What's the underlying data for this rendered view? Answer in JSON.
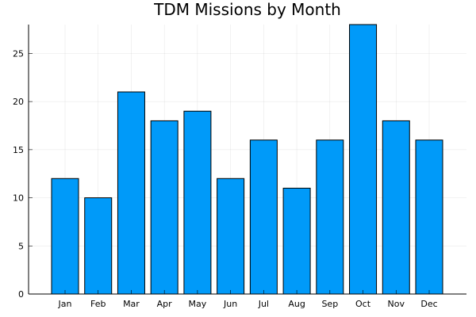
{
  "chart_data": {
    "type": "bar",
    "title": "TDM Missions by Month",
    "xlabel": "",
    "ylabel": "",
    "categories": [
      "Jan",
      "Feb",
      "Mar",
      "Apr",
      "May",
      "Jun",
      "Jul",
      "Aug",
      "Sep",
      "Oct",
      "Nov",
      "Dec"
    ],
    "values": [
      12,
      10,
      21,
      18,
      19,
      12,
      16,
      11,
      16,
      28,
      18,
      16
    ],
    "ylim": [
      0,
      28
    ],
    "yticks": [
      0,
      5,
      10,
      15,
      20,
      25
    ],
    "grid": true,
    "legend": "none",
    "bar_color": "#009af9",
    "edge_color": "#000000"
  }
}
